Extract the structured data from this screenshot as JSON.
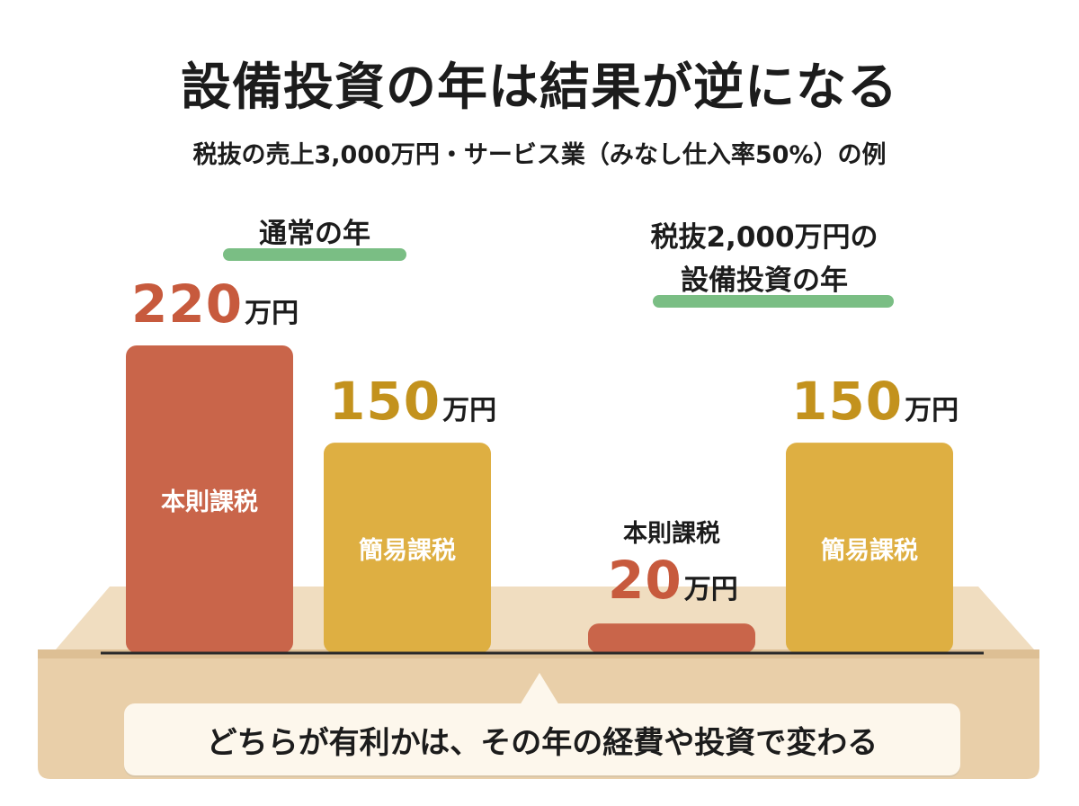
{
  "header": {
    "title": "設備投資の年は結果が逆になる",
    "subtitle": "税抜の売上3,000万円・サービス業（みなし仕入率50%）の例"
  },
  "groups": [
    {
      "label_line1": "通常の年",
      "label_line2": ""
    },
    {
      "label_line1": "税抜2,000万円の",
      "label_line2": "設備投資の年"
    }
  ],
  "unit": "万円",
  "chart_data": {
    "type": "bar",
    "title": "設備投資の年は結果が逆になる",
    "subtitle": "税抜の売上3,000万円・サービス業（みなし仕入率50%）の例",
    "unit": "万円",
    "categories": [
      "通常の年",
      "税抜2,000万円の設備投資の年"
    ],
    "series": [
      {
        "name": "本則課税",
        "values": [
          220,
          20
        ],
        "color": "#c9654a"
      },
      {
        "name": "簡易課税",
        "values": [
          150,
          150
        ],
        "color": "#deaf42"
      }
    ],
    "ylim": [
      0,
      220
    ],
    "grid": false,
    "legend": "none"
  },
  "bars": [
    {
      "series_label": "本則課税",
      "value_text": "220"
    },
    {
      "series_label": "簡易課税",
      "value_text": "150"
    },
    {
      "series_label": "本則課税",
      "value_text": "20"
    },
    {
      "series_label": "簡易課税",
      "value_text": "150"
    }
  ],
  "callout": {
    "text": "どちらが有利かは、その年の経費や投資で変わる"
  },
  "colors": {
    "honsoku": "#c9654a",
    "kanni": "#deaf42",
    "platform": "#efd9b9",
    "highlight": "#63b36f"
  }
}
